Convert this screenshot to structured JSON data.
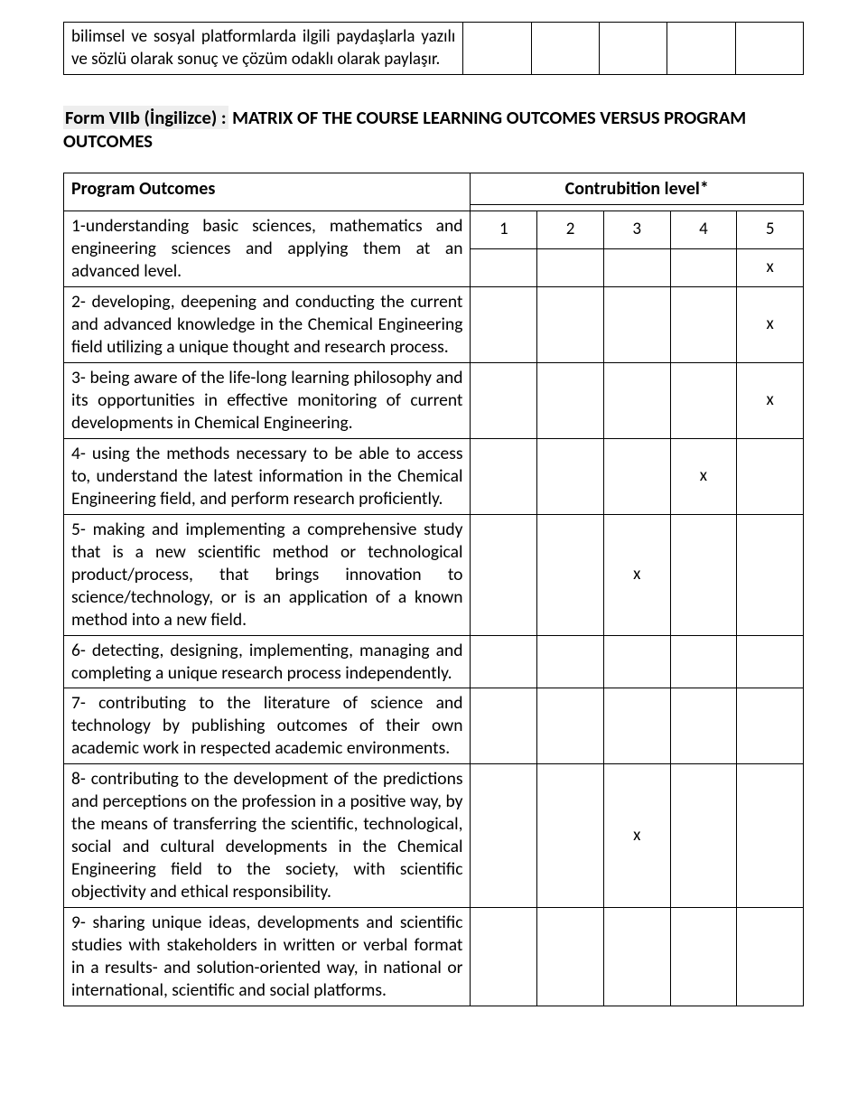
{
  "topRow": {
    "description": "bilimsel ve sosyal platformlarda ilgili paydaşlarla yazılı ve sözlü olarak sonuç ve çözüm odaklı olarak paylaşır."
  },
  "formTitle": {
    "label": "Form VIIb (İngilizce) :",
    "rest": " MATRIX OF THE COURSE LEARNING OUTCOMES VERSUS PROGRAM OUTCOMES"
  },
  "tableHeader": {
    "left": "Program Outcomes",
    "right": "Contrubition level*"
  },
  "cols": [
    "1",
    "2",
    "3",
    "4",
    "5"
  ],
  "rows": [
    {
      "desc": "1-understanding basic sciences, mathematics and engineering sciences and applying them at an advanced level.",
      "marks": [
        "",
        "",
        "",
        "",
        "x"
      ]
    },
    {
      "desc": "2- developing, deepening and conducting the current and advanced knowledge in  the Chemical Engineering field utilizing a unique thought and research process.",
      "marks": [
        "",
        "",
        "",
        "",
        "x"
      ]
    },
    {
      "desc": "3- being aware of the life-long learning philosophy and its opportunities in effective monitoring of current developments in Chemical Engineering.",
      "marks": [
        "",
        "",
        "",
        "",
        "x"
      ]
    },
    {
      "desc": "4- using the methods necessary to be able to access to, understand the latest information in the Chemical Engineering field, and perform research proficiently.",
      "marks": [
        "",
        "",
        "",
        "x",
        ""
      ]
    },
    {
      "desc": "5- making and implementing a comprehensive study that is a new scientific method or technological product/process, that brings innovation to science/technology, or is an application of a known method into a new field.",
      "marks": [
        "",
        "",
        "x",
        "",
        ""
      ]
    },
    {
      "desc": "6- detecting, designing, implementing, managing and completing a unique research process independently.",
      "marks": [
        "",
        "",
        "",
        "",
        ""
      ]
    },
    {
      "desc": "7- contributing to the literature of science and technology by publishing outcomes of their own academic work in respected academic environments.",
      "marks": [
        "",
        "",
        "",
        "",
        ""
      ]
    },
    {
      "desc": "8- contributing to the development of the predictions and perceptions on the profession in a positive way, by the means of transferring the scientific, technological, social and cultural developments in the Chemical Engineering field to the society, with scientific objectivity and ethical responsibility.",
      "marks": [
        "",
        "",
        "x",
        "",
        ""
      ]
    },
    {
      "desc": "9- sharing unique ideas, developments and scientific studies with stakeholders in written or verbal format in a results- and solution-oriented way, in national or international, scientific and social platforms.",
      "marks": [
        "",
        "",
        "",
        "",
        ""
      ]
    }
  ]
}
